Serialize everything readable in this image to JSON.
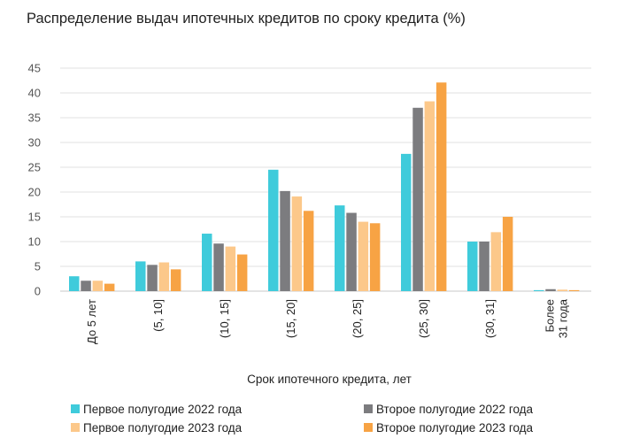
{
  "chart_data": {
    "type": "bar",
    "title": "Распределение выдач ипотечных кредитов по сроку кредита (%)",
    "xlabel": "Срок ипотечного кредита, лет",
    "ylabel": "",
    "ylim": [
      0,
      45
    ],
    "yticks": [
      0,
      5,
      10,
      15,
      20,
      25,
      30,
      35,
      40,
      45
    ],
    "grid": true,
    "legend_position": "bottom",
    "categories": [
      [
        "До 5 лет"
      ],
      [
        "(5, 10]"
      ],
      [
        "(10, 15]"
      ],
      [
        "(15, 20]"
      ],
      [
        "(20, 25]"
      ],
      [
        "(25, 30]"
      ],
      [
        "(30, 31]"
      ],
      [
        "Более",
        "31 года"
      ]
    ],
    "series": [
      {
        "name": "Первое полугодие 2022 года",
        "color": "#3fcbdb",
        "values": [
          3.0,
          6.0,
          11.6,
          24.5,
          17.3,
          27.7,
          10.0,
          0.2
        ]
      },
      {
        "name": "Второе полугодие 2022 года",
        "color": "#7c7c7f",
        "values": [
          2.1,
          5.3,
          9.6,
          20.2,
          15.8,
          37.0,
          10.0,
          0.4
        ]
      },
      {
        "name": "Первое полугодие 2023 года",
        "color": "#fcc88a",
        "values": [
          2.1,
          5.8,
          9.0,
          19.1,
          14.0,
          38.3,
          11.9,
          0.3
        ]
      },
      {
        "name": "Второе полугодие 2023 года",
        "color": "#f7a344",
        "values": [
          1.5,
          4.4,
          7.4,
          16.2,
          13.7,
          42.1,
          15.0,
          0.2
        ]
      }
    ]
  }
}
